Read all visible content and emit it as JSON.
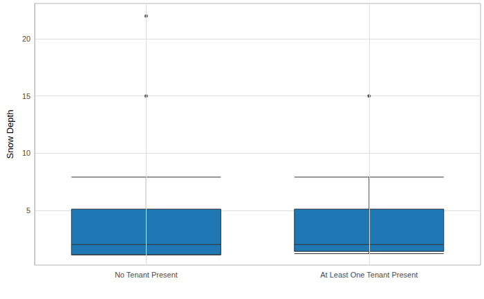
{
  "chart_data": {
    "type": "boxplot",
    "y_label": "Snow Depth",
    "categories": [
      "No Tenant Present",
      "At Least One Tenant Present"
    ],
    "boxes": [
      {
        "min": 1.1,
        "q1": 1.1,
        "median": 2,
        "q3": 5.1,
        "max": 7.9
      },
      {
        "min": 1.2,
        "q1": 1.4,
        "median": 2,
        "q3": 5.1,
        "max": 7.9
      }
    ],
    "outliers": [
      [
        22,
        15
      ],
      [
        15
      ]
    ],
    "color": "#1f78b4",
    "ylim": [
      0.2,
      23.1
    ],
    "yticks": [
      5,
      10,
      15,
      20
    ],
    "grid": true
  }
}
